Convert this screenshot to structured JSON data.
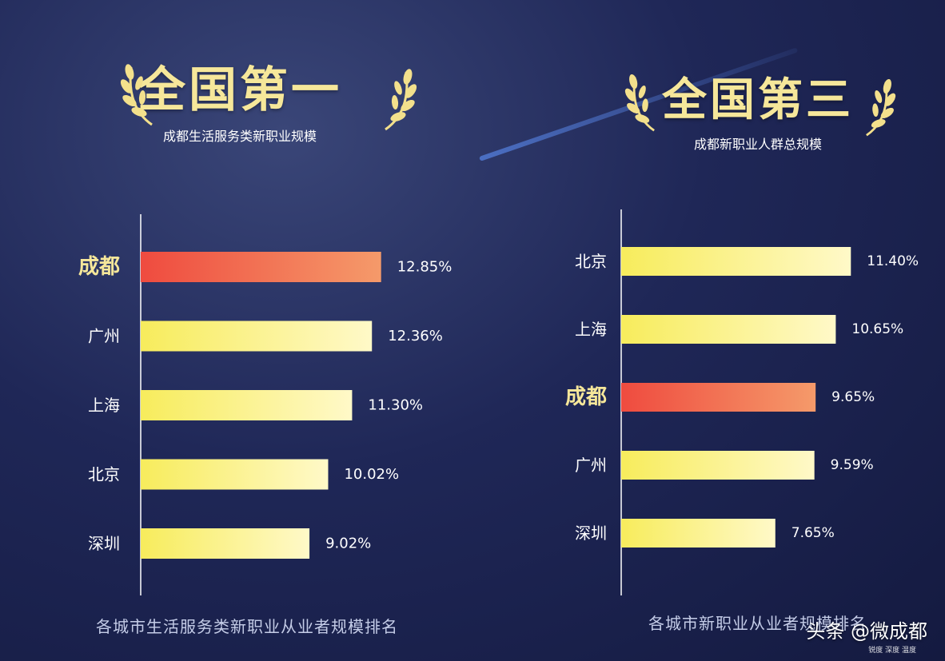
{
  "colors": {
    "bar_yellow": "#f7ec5c",
    "bar_yellow_light": "#fff9c8",
    "bar_highlight": "#ef4b3f",
    "bar_highlight_light": "#f59a6a",
    "title_gold": "#f6e79a",
    "background": "#1f2757"
  },
  "left": {
    "headline": "全国第一",
    "subline": "成都生活服务类新职业规模",
    "caption": "各城市生活服务类新职业从业者规模排名"
  },
  "right": {
    "headline": "全国第三",
    "subline": "成都新职业人群总规模",
    "caption": "各城市新职业从业者规模排名"
  },
  "watermark": {
    "text": "头条 @微成都",
    "sub": "锐度 深度 温度"
  },
  "chart_data": [
    {
      "type": "bar",
      "orientation": "horizontal",
      "title": "",
      "xlabel": "",
      "ylabel": "",
      "categories": [
        "成都",
        "广州",
        "上海",
        "北京",
        "深圳"
      ],
      "values": [
        12.85,
        12.36,
        11.3,
        10.02,
        9.02
      ],
      "value_labels": [
        "12.85%",
        "12.36%",
        "11.30%",
        "10.02%",
        "9.02%"
      ],
      "highlight": "成都",
      "xlim": [
        0,
        14.5
      ],
      "grid": false
    },
    {
      "type": "bar",
      "orientation": "horizontal",
      "title": "",
      "xlabel": "",
      "ylabel": "",
      "categories": [
        "北京",
        "上海",
        "成都",
        "广州",
        "深圳"
      ],
      "values": [
        11.4,
        10.65,
        9.65,
        9.59,
        7.65
      ],
      "value_labels": [
        "11.40%",
        "10.65%",
        "9.65%",
        "9.59%",
        "7.65%"
      ],
      "highlight": "成都",
      "xlim": [
        0,
        13.0
      ],
      "grid": false
    }
  ]
}
